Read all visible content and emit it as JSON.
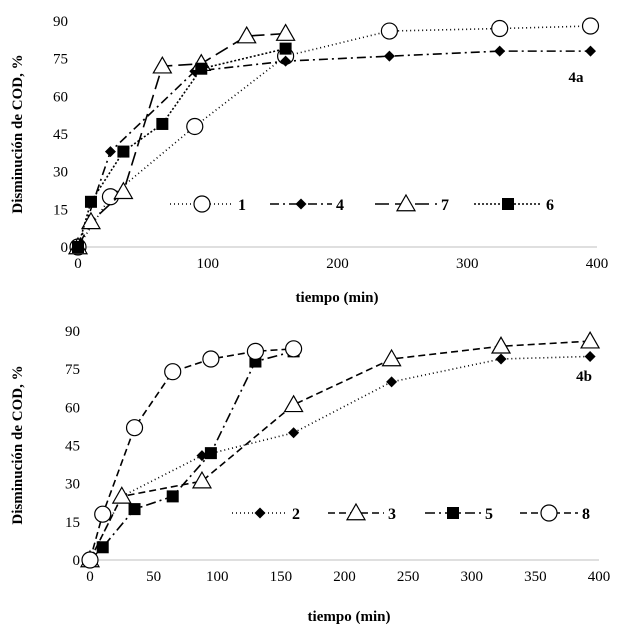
{
  "chart_data": [
    {
      "type": "line",
      "panel_label": "4a",
      "xlabel": "tiempo (min)",
      "ylabel": "Disminución de COD, %",
      "xlim": [
        0,
        400
      ],
      "ylim": [
        0,
        90
      ],
      "xticks": [
        0,
        100,
        200,
        300,
        400
      ],
      "yticks": [
        0,
        15,
        30,
        45,
        60,
        75,
        90
      ],
      "legend_position": "lower-right",
      "series": [
        {
          "name": "1",
          "marker": "circle-open",
          "dash": "1 3",
          "x": [
            0,
            25,
            90,
            160,
            240,
            325,
            395
          ],
          "y": [
            0,
            20,
            48,
            76,
            86,
            87,
            88
          ]
        },
        {
          "name": "4",
          "marker": "diamond-filled",
          "dash": "9 4 2 4",
          "x": [
            0,
            25,
            90,
            160,
            240,
            325,
            395
          ],
          "y": [
            0,
            38,
            70,
            74,
            76,
            78,
            78
          ]
        },
        {
          "name": "7",
          "marker": "triangle-open",
          "dash": "14 6",
          "x": [
            0,
            10,
            35,
            65,
            95,
            130,
            160
          ],
          "y": [
            0,
            10,
            22,
            72,
            73,
            84,
            85
          ]
        },
        {
          "name": "6",
          "marker": "square-filled",
          "dash": "2 2",
          "x": [
            0,
            10,
            35,
            65,
            95,
            160
          ],
          "y": [
            0,
            18,
            38,
            49,
            71,
            79
          ]
        }
      ]
    },
    {
      "type": "line",
      "panel_label": "4b",
      "xlabel": "tiempo (min)",
      "ylabel": "Disminución  de COD, %",
      "xlim": [
        0,
        400
      ],
      "ylim": [
        0,
        90
      ],
      "xticks": [
        0,
        50,
        100,
        150,
        200,
        250,
        300,
        350,
        400
      ],
      "yticks": [
        0,
        15,
        30,
        45,
        60,
        75,
        90
      ],
      "legend_position": "lower-right",
      "series": [
        {
          "name": "2",
          "marker": "diamond-filled",
          "dash": "1 3",
          "x": [
            0,
            25,
            88,
            160,
            237,
            323,
            393
          ],
          "y": [
            0,
            25,
            41,
            50,
            70,
            79,
            80
          ]
        },
        {
          "name": "3",
          "marker": "triangle-open",
          "dash": "7 4",
          "x": [
            0,
            25,
            88,
            160,
            237,
            323,
            393
          ],
          "y": [
            0,
            25,
            31,
            61,
            79,
            84,
            86
          ]
        },
        {
          "name": "5",
          "marker": "square-filled",
          "dash": "10 4 2 4",
          "x": [
            0,
            10,
            35,
            65,
            95,
            130,
            160
          ],
          "y": [
            0,
            5,
            20,
            25,
            42,
            78,
            82
          ]
        },
        {
          "name": "8",
          "marker": "circle-open",
          "dash": "7 4",
          "x": [
            0,
            10,
            35,
            65,
            95,
            130,
            160
          ],
          "y": [
            0,
            18,
            52,
            74,
            79,
            82,
            83
          ]
        }
      ]
    }
  ]
}
